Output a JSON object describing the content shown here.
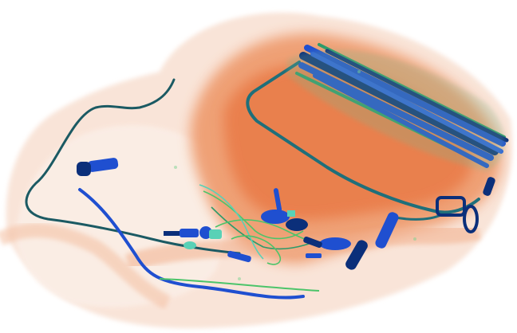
{
  "image": {
    "kind": "x-ray baggage scan",
    "colors": {
      "background": "#ffffff",
      "organic_light": "#f7d5c2",
      "organic_mid": "#f0a47c",
      "organic_dense": "#e8743f",
      "metal_blue": "#1f4fd0",
      "metal_dark": "#0b2f7a",
      "wire_green": "#2e9b6a",
      "wire_bright_green": "#4cc46a",
      "light_teal": "#59d1b6"
    }
  }
}
